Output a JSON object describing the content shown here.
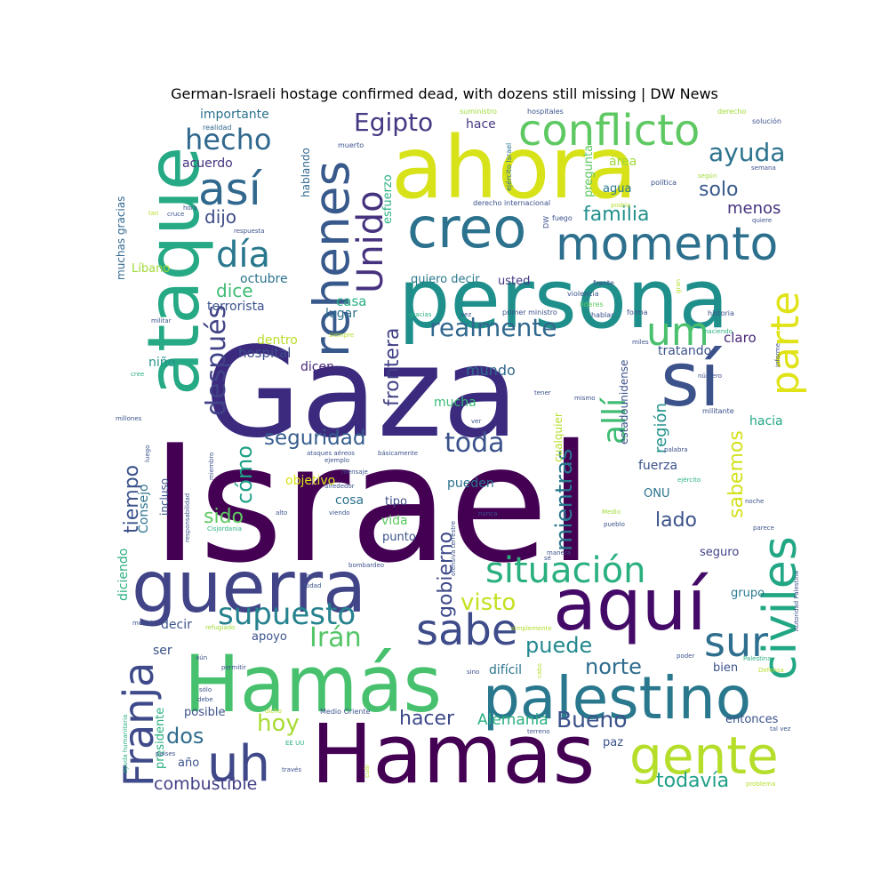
{
  "chart_data": {
    "type": "wordcloud",
    "title": "German-Israeli hostage confirmed dead, with dozens still missing | DW News",
    "words": [
      {
        "text": "Israel",
        "color": "#440154",
        "weight": 100
      },
      {
        "text": "Gaza",
        "color": "#3b2a7e",
        "weight": 92
      },
      {
        "text": "Hamas",
        "color": "#440154",
        "weight": 70
      },
      {
        "text": "ahora",
        "color": "#d8e219",
        "weight": 68
      },
      {
        "text": "persona",
        "color": "#1f8f8c",
        "weight": 62
      },
      {
        "text": "Hamás",
        "color": "#47c16e",
        "weight": 60
      },
      {
        "text": "ataque",
        "color": "#26a985",
        "weight": 58
      },
      {
        "text": "aquí",
        "color": "#440a68",
        "weight": 52
      },
      {
        "text": "guerra",
        "color": "#414487",
        "weight": 52
      },
      {
        "text": "palestino",
        "color": "#29788e",
        "weight": 50
      },
      {
        "text": "sí",
        "color": "#3b528b",
        "weight": 50
      },
      {
        "text": "civiles",
        "color": "#22a785",
        "weight": 46
      },
      {
        "text": "creo",
        "color": "#2c728e",
        "weight": 42
      },
      {
        "text": "rehenes",
        "color": "#38598c",
        "weight": 42
      },
      {
        "text": "gente",
        "color": "#b5de2b",
        "weight": 42
      },
      {
        "text": "uh",
        "color": "#3f4889",
        "weight": 40
      },
      {
        "text": "Franja",
        "color": "#3e4a89",
        "weight": 38
      },
      {
        "text": "momento",
        "color": "#2d708e",
        "weight": 38
      },
      {
        "text": "conflicto",
        "color": "#5ec962",
        "weight": 36
      },
      {
        "text": "situación",
        "color": "#2ab07f",
        "weight": 34
      },
      {
        "text": "sur",
        "color": "#2e6e8e",
        "weight": 34
      },
      {
        "text": "sabe",
        "color": "#3e4c8a",
        "weight": 34
      },
      {
        "text": "así",
        "color": "#31688e",
        "weight": 34
      },
      {
        "text": "parte",
        "color": "#e0e318",
        "weight": 34
      },
      {
        "text": "Unido",
        "color": "#46327e",
        "weight": 32
      },
      {
        "text": "um",
        "color": "#4ac16d",
        "weight": 30
      },
      {
        "text": "allí",
        "color": "#3fbc73",
        "weight": 30
      },
      {
        "text": "día",
        "color": "#2a788e",
        "weight": 30
      },
      {
        "text": "supuesto",
        "color": "#26828e",
        "weight": 28
      },
      {
        "text": "después",
        "color": "#414287",
        "weight": 28
      },
      {
        "text": "hecho",
        "color": "#31688e",
        "weight": 26
      },
      {
        "text": "Irán",
        "color": "#54c568",
        "weight": 26
      },
      {
        "text": "realmente",
        "color": "#31688e",
        "weight": 25
      },
      {
        "text": "toda",
        "color": "#3b528b",
        "weight": 25
      },
      {
        "text": "mientras",
        "color": "#2a788e",
        "weight": 24
      },
      {
        "text": "Egipto",
        "color": "#443983",
        "weight": 24
      },
      {
        "text": "ayuda",
        "color": "#2c738e",
        "weight": 24
      },
      {
        "text": "gobierno",
        "color": "#3e4989",
        "weight": 24
      },
      {
        "text": "hoy",
        "color": "#a8db34",
        "weight": 24
      },
      {
        "text": "visto",
        "color": "#c5e021",
        "weight": 23
      },
      {
        "text": "Bueno",
        "color": "#3b528b",
        "weight": 23
      },
      {
        "text": "norte",
        "color": "#2f6c8e",
        "weight": 22
      },
      {
        "text": "puede",
        "color": "#23898e",
        "weight": 22
      },
      {
        "text": "dos",
        "color": "#2f6c8e",
        "weight": 22
      },
      {
        "text": "seguridad",
        "color": "#365d8d",
        "weight": 22
      },
      {
        "text": "hacer",
        "color": "#3e4a89",
        "weight": 21
      },
      {
        "text": "frontera",
        "color": "#424186",
        "weight": 21
      },
      {
        "text": "todavía",
        "color": "#1f9f88",
        "weight": 21
      },
      {
        "text": "cómo",
        "color": "#1fa187",
        "weight": 21
      },
      {
        "text": "solo",
        "color": "#38598c",
        "weight": 21
      },
      {
        "text": "sabemos",
        "color": "#d2e21b",
        "weight": 20
      },
      {
        "text": "dijo",
        "color": "#3e4c8a",
        "weight": 20
      },
      {
        "text": "tiempo",
        "color": "#3b528b",
        "weight": 20
      },
      {
        "text": "familia",
        "color": "#21918c",
        "weight": 19
      },
      {
        "text": "sido",
        "color": "#5ec962",
        "weight": 19
      },
      {
        "text": "lado",
        "color": "#3b528b",
        "weight": 19
      },
      {
        "text": "combustible",
        "color": "#424086",
        "weight": 19
      },
      {
        "text": "Alemania",
        "color": "#2ab07f",
        "weight": 18
      },
      {
        "text": "dice",
        "color": "#3dbc74",
        "weight": 18
      },
      {
        "text": "región",
        "color": "#21918c",
        "weight": 18
      },
      {
        "text": "menos",
        "color": "#46337f",
        "weight": 18
      },
      {
        "text": "usted",
        "color": "#443a83",
        "weight": 12
      },
      {
        "text": "quiero decir",
        "color": "#2a788e",
        "weight": 12
      },
      {
        "text": "mundo",
        "color": "#31688e",
        "weight": 14
      },
      {
        "text": "mucha",
        "color": "#3aba76",
        "weight": 13
      },
      {
        "text": "lugar",
        "color": "#2c728e",
        "weight": 13
      },
      {
        "text": "casa",
        "color": "#29af7f",
        "weight": 13
      },
      {
        "text": "octubre",
        "color": "#2c728e",
        "weight": 13
      },
      {
        "text": "terrorista",
        "color": "#3b528b",
        "weight": 13
      },
      {
        "text": "dentro",
        "color": "#b8de29",
        "weight": 13
      },
      {
        "text": "hospital",
        "color": "#3e4c8a",
        "weight": 13
      },
      {
        "text": "dicen",
        "color": "#482677",
        "weight": 13
      },
      {
        "text": "niño",
        "color": "#21918c",
        "weight": 12
      },
      {
        "text": "acuerdo",
        "color": "#46327e",
        "weight": 12
      },
      {
        "text": "importante",
        "color": "#2c728e",
        "weight": 13
      },
      {
        "text": "hablando",
        "color": "#31688e",
        "weight": 11
      },
      {
        "text": "esfuerzo",
        "color": "#2ab07f",
        "weight": 11
      },
      {
        "text": "hace",
        "color": "#443983",
        "weight": 12
      },
      {
        "text": "pregunta",
        "color": "#5ec962",
        "weight": 11
      },
      {
        "text": "área",
        "color": "#a0da39",
        "weight": 11
      },
      {
        "text": "agua",
        "color": "#2a788e",
        "weight": 11
      },
      {
        "text": "claro",
        "color": "#482677",
        "weight": 12
      },
      {
        "text": "tratando",
        "color": "#3b528b",
        "weight": 12
      },
      {
        "text": "hacia",
        "color": "#22a785",
        "weight": 13
      },
      {
        "text": "fuerza",
        "color": "#3b528b",
        "weight": 12
      },
      {
        "text": "ONU",
        "color": "#2c728e",
        "weight": 12
      },
      {
        "text": "pueden",
        "color": "#2c728e",
        "weight": 12
      },
      {
        "text": "objetivo",
        "color": "#d8e219",
        "weight": 12
      },
      {
        "text": "tipo",
        "color": "#3e4c8a",
        "weight": 12
      },
      {
        "text": "cosa",
        "color": "#2c728e",
        "weight": 12
      },
      {
        "text": "vida",
        "color": "#5ec962",
        "weight": 12
      },
      {
        "text": "punto",
        "color": "#3b528b",
        "weight": 12
      },
      {
        "text": "Consejo",
        "color": "#2c728e",
        "weight": 12
      },
      {
        "text": "incluso",
        "color": "#3b528b",
        "weight": 11
      },
      {
        "text": "diciendo",
        "color": "#2ab07f",
        "weight": 12
      },
      {
        "text": "muchas gracias",
        "color": "#31688e",
        "weight": 11
      },
      {
        "text": "Líbano",
        "color": "#a0da39",
        "weight": 11
      },
      {
        "text": "cualquier",
        "color": "#b5de2b",
        "weight": 11
      },
      {
        "text": "estadounidense",
        "color": "#3b528b",
        "weight": 11
      },
      {
        "text": "seguro",
        "color": "#414487",
        "weight": 12
      },
      {
        "text": "grupo",
        "color": "#2a788e",
        "weight": 12
      },
      {
        "text": "difícil",
        "color": "#2c728e",
        "weight": 12
      },
      {
        "text": "bien",
        "color": "#3b528b",
        "weight": 12
      },
      {
        "text": "entonces",
        "color": "#3b528b",
        "weight": 12
      },
      {
        "text": "paz",
        "color": "#3b528b",
        "weight": 12
      },
      {
        "text": "decir",
        "color": "#3b528b",
        "weight": 12
      },
      {
        "text": "apoyo",
        "color": "#3b528b",
        "weight": 12
      },
      {
        "text": "ser",
        "color": "#3b528b",
        "weight": 12
      },
      {
        "text": "posible",
        "color": "#3b528b",
        "weight": 12
      },
      {
        "text": "presidente",
        "color": "#2ab07f",
        "weight": 11
      },
      {
        "text": "año",
        "color": "#3b528b",
        "weight": 12
      },
      {
        "text": "realidad",
        "color": "#31688e",
        "weight": 8
      },
      {
        "text": "suministro",
        "color": "#a0da39",
        "weight": 8
      },
      {
        "text": "ejército Israel",
        "color": "#2c728e",
        "weight": 8
      },
      {
        "text": "muerto",
        "color": "#3b528b",
        "weight": 8
      },
      {
        "text": "derecho internacional",
        "color": "#3b528b",
        "weight": 8
      },
      {
        "text": "DW",
        "color": "#3b528b",
        "weight": 8
      },
      {
        "text": "hospitales",
        "color": "#3b528b",
        "weight": 8
      },
      {
        "text": "derecho",
        "color": "#a0da39",
        "weight": 8
      },
      {
        "text": "solución",
        "color": "#3b528b",
        "weight": 8
      },
      {
        "text": "según",
        "color": "#a0da39",
        "weight": 7
      },
      {
        "text": "semana",
        "color": "#3b528b",
        "weight": 7
      },
      {
        "text": "política",
        "color": "#3b528b",
        "weight": 8
      },
      {
        "text": "podría",
        "color": "#b5de2b",
        "weight": 7
      },
      {
        "text": "quiere",
        "color": "#3b528b",
        "weight": 7
      },
      {
        "text": "fuego",
        "color": "#3b528b",
        "weight": 8
      },
      {
        "text": "gran",
        "color": "#b5de2b",
        "weight": 7
      },
      {
        "text": "frente",
        "color": "#3b528b",
        "weight": 8
      },
      {
        "text": "violencia",
        "color": "#3b528b",
        "weight": 8
      },
      {
        "text": "líderes",
        "color": "#5ec962",
        "weight": 8
      },
      {
        "text": "primer ministro",
        "color": "#3b528b",
        "weight": 8
      },
      {
        "text": "forma",
        "color": "#3b528b",
        "weight": 8
      },
      {
        "text": "historia",
        "color": "#3b528b",
        "weight": 8
      },
      {
        "text": "haciendo",
        "color": "#2ab07f",
        "weight": 7
      },
      {
        "text": "hablar",
        "color": "#3b528b",
        "weight": 8
      },
      {
        "text": "miles",
        "color": "#3b528b",
        "weight": 7
      },
      {
        "text": "informe",
        "color": "#3b528b",
        "weight": 7
      },
      {
        "text": "número",
        "color": "#3b528b",
        "weight": 7
      },
      {
        "text": "militante",
        "color": "#3b528b",
        "weight": 8
      },
      {
        "text": "tener",
        "color": "#3b528b",
        "weight": 7
      },
      {
        "text": "mismo",
        "color": "#3b528b",
        "weight": 7
      },
      {
        "text": "palabra",
        "color": "#3b528b",
        "weight": 7
      },
      {
        "text": "ejército",
        "color": "#2ab07f",
        "weight": 7
      },
      {
        "text": "noche",
        "color": "#3b528b",
        "weight": 7
      },
      {
        "text": "parece",
        "color": "#3b528b",
        "weight": 7
      },
      {
        "text": "Medio",
        "color": "#a0da39",
        "weight": 7
      },
      {
        "text": "pueblo",
        "color": "#3b528b",
        "weight": 7
      },
      {
        "text": "manera",
        "color": "#3b528b",
        "weight": 7
      },
      {
        "text": "nunca",
        "color": "#3b528b",
        "weight": 7
      },
      {
        "text": "Autoridad Palestina",
        "color": "#3b528b",
        "weight": 7
      },
      {
        "text": "Palestina",
        "color": "#2ab07f",
        "weight": 7
      },
      {
        "text": "Defensa",
        "color": "#b5de2b",
        "weight": 7
      },
      {
        "text": "tal vez",
        "color": "#3b528b",
        "weight": 7
      },
      {
        "text": "poder",
        "color": "#3b528b",
        "weight": 7
      },
      {
        "text": "problema",
        "color": "#b5de2b",
        "weight": 7
      },
      {
        "text": "terreno",
        "color": "#3b528b",
        "weight": 7
      },
      {
        "text": "sino",
        "color": "#3b528b",
        "weight": 7
      },
      {
        "text": "cabo",
        "color": "#b5de2b",
        "weight": 7
      },
      {
        "text": "Medio Oriente",
        "color": "#3b528b",
        "weight": 8
      },
      {
        "text": "EE UU",
        "color": "#2ab07f",
        "weight": 7
      },
      {
        "text": "través",
        "color": "#3b528b",
        "weight": 7
      },
      {
        "text": "cuál",
        "color": "#b5de2b",
        "weight": 7
      },
      {
        "text": "dicho",
        "color": "#b5de2b",
        "weight": 7
      },
      {
        "text": "permitir",
        "color": "#3b528b",
        "weight": 7
      },
      {
        "text": "aún",
        "color": "#3b528b",
        "weight": 7
      },
      {
        "text": "sólo",
        "color": "#3b528b",
        "weight": 7
      },
      {
        "text": "debe",
        "color": "#3b528b",
        "weight": 7
      },
      {
        "text": "países",
        "color": "#3b528b",
        "weight": 7
      },
      {
        "text": "ayuda humanitaria",
        "color": "#2ab07f",
        "weight": 7
      },
      {
        "text": "medida",
        "color": "#3b528b",
        "weight": 7
      },
      {
        "text": "refugiado",
        "color": "#a0da39",
        "weight": 7
      },
      {
        "text": "simplemente",
        "color": "#b5de2b",
        "weight": 7
      },
      {
        "text": "país",
        "color": "#3b528b",
        "weight": 7
      },
      {
        "text": "ciudad",
        "color": "#3b528b",
        "weight": 7
      },
      {
        "text": "bombardeo",
        "color": "#3b528b",
        "weight": 7
      },
      {
        "text": "ofensiva terrestre",
        "color": "#3b528b",
        "weight": 7
      },
      {
        "text": "sé",
        "color": "#3b528b",
        "weight": 7
      },
      {
        "text": "Cisjordania",
        "color": "#2ab07f",
        "weight": 7
      },
      {
        "text": "alto",
        "color": "#3b528b",
        "weight": 7
      },
      {
        "text": "viendo",
        "color": "#3b528b",
        "weight": 7
      },
      {
        "text": "alrededor",
        "color": "#3b528b",
        "weight": 7
      },
      {
        "text": "mensaje",
        "color": "#3b528b",
        "weight": 7
      },
      {
        "text": "responsabilidad",
        "color": "#3b528b",
        "weight": 7
      },
      {
        "text": "miembro",
        "color": "#3b528b",
        "weight": 7
      },
      {
        "text": "ejemplo",
        "color": "#3b528b",
        "weight": 7
      },
      {
        "text": "ataques aéreos",
        "color": "#3b528b",
        "weight": 7
      },
      {
        "text": "básicamente",
        "color": "#3b528b",
        "weight": 7
      },
      {
        "text": "luego",
        "color": "#3b528b",
        "weight": 7
      },
      {
        "text": "millones",
        "color": "#3b528b",
        "weight": 7
      },
      {
        "text": "ver",
        "color": "#3b528b",
        "weight": 7
      },
      {
        "text": "cree",
        "color": "#2ab07f",
        "weight": 7
      },
      {
        "text": "militar",
        "color": "#3b528b",
        "weight": 7
      },
      {
        "text": "siempre",
        "color": "#b5de2b",
        "weight": 7
      },
      {
        "text": "gracias",
        "color": "#2ab07f",
        "weight": 7
      },
      {
        "text": "vez",
        "color": "#3b528b",
        "weight": 7
      },
      {
        "text": "respuesta",
        "color": "#3b528b",
        "weight": 7
      },
      {
        "text": "hora",
        "color": "#3b528b",
        "weight": 7
      },
      {
        "text": "tan",
        "color": "#b5de2b",
        "weight": 7
      },
      {
        "text": "cruce",
        "color": "#3b528b",
        "weight": 7
      }
    ]
  }
}
